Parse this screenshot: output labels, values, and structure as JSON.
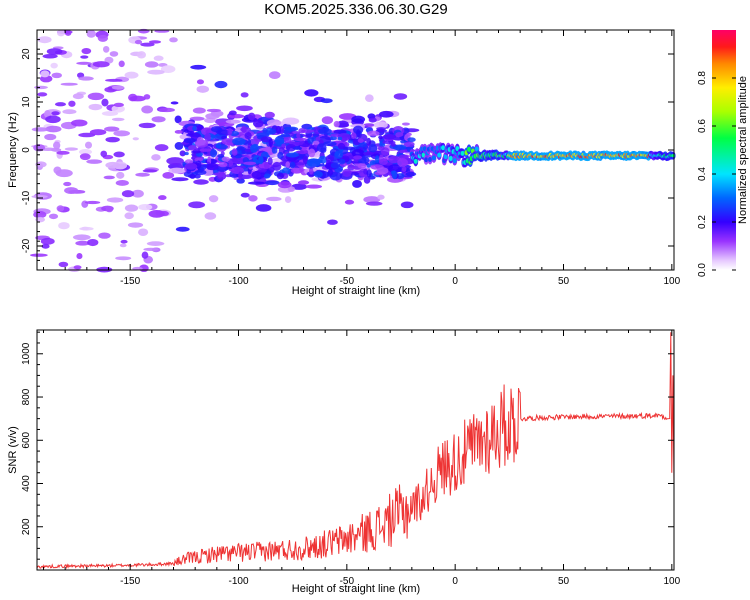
{
  "title": "KOM5.2025.336.06.30.G29",
  "chart_data": [
    {
      "type": "heatmap",
      "xlabel": "Height of straight line (km)",
      "ylabel": "Frequency (Hz)",
      "xlim": [
        -193,
        101
      ],
      "ylim": [
        -25,
        25
      ],
      "xticks": [
        -150,
        -100,
        -50,
        0,
        50,
        100
      ],
      "yticks": [
        -20,
        -10,
        0,
        10,
        20
      ],
      "colorbar": {
        "label": "Normalized spectral amplitude",
        "range": [
          0,
          1
        ],
        "ticks": [
          0.0,
          0.2,
          0.4,
          0.6,
          0.8
        ]
      },
      "ridge": {
        "description_x_range_km": [
          -20,
          101
        ],
        "frequency_hz": -1.2
      }
    },
    {
      "type": "line",
      "xlabel": "Height of straight line (km)",
      "ylabel": "SNR (v/v)",
      "xlim": [
        -193,
        101
      ],
      "ylim": [
        0,
        1110
      ],
      "xticks": [
        -150,
        -100,
        -50,
        0,
        50,
        100
      ],
      "yticks": [
        200,
        400,
        600,
        800,
        1000
      ],
      "series": [
        {
          "name": "SNR",
          "color": "#ee3333",
          "x": [
            -193,
            -180,
            -160,
            -140,
            -130,
            -125,
            -110,
            -90,
            -70,
            -55,
            -45,
            -35,
            -25,
            -15,
            -10,
            -5,
            0,
            5,
            10,
            15,
            20,
            25,
            30,
            40,
            60,
            80,
            95,
            99,
            100,
            101
          ],
          "y": [
            15,
            18,
            20,
            25,
            30,
            50,
            75,
            85,
            100,
            130,
            160,
            200,
            260,
            330,
            420,
            480,
            500,
            540,
            580,
            620,
            650,
            680,
            700,
            705,
            710,
            712,
            715,
            700,
            1100,
            400
          ]
        }
      ]
    }
  ]
}
